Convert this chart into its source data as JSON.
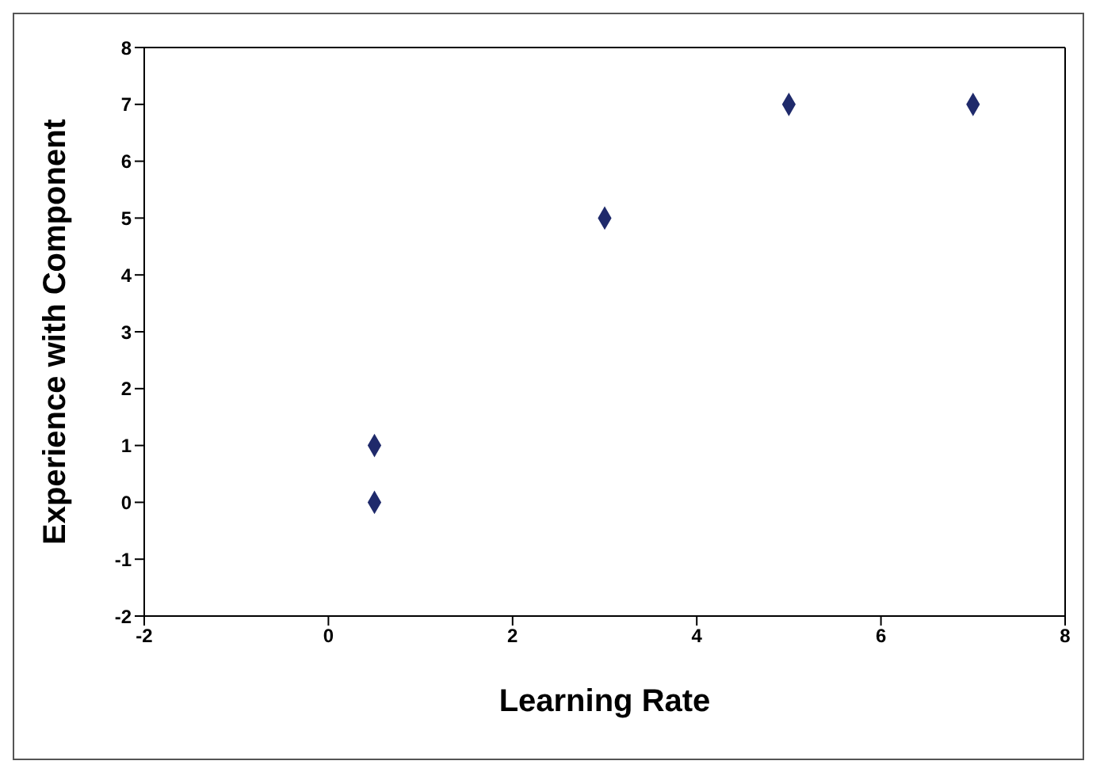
{
  "chart_data": {
    "type": "scatter",
    "xlabel": "Learning Rate",
    "ylabel": "Experience with Component",
    "x": [
      0.5,
      0.5,
      3,
      5,
      7
    ],
    "values": [
      1,
      0,
      5,
      7,
      7
    ],
    "color": "#1f2a6b",
    "marker": "diamond",
    "xlim": [
      -2,
      8
    ],
    "xticks": [
      -2,
      0,
      2,
      4,
      6,
      8
    ],
    "ylim": [
      -2,
      8
    ],
    "yticks": [
      -2,
      -1,
      0,
      1,
      2,
      3,
      4,
      5,
      6,
      7,
      8
    ]
  }
}
